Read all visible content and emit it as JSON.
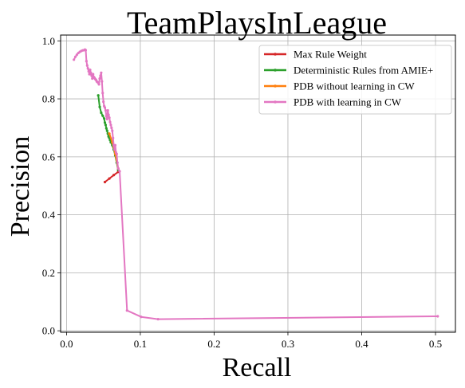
{
  "chart_data": {
    "type": "line",
    "title": "TeamPlaysInLeague",
    "xlabel": "Recall",
    "ylabel": "Precision",
    "xlim": [
      -0.008,
      0.527
    ],
    "ylim": [
      -0.005,
      1.02
    ],
    "xticks": [
      0.0,
      0.1,
      0.2,
      0.3,
      0.4,
      0.5
    ],
    "xtick_labels": [
      "0.0",
      "0.1",
      "0.2",
      "0.3",
      "0.4",
      "0.5"
    ],
    "yticks": [
      0.0,
      0.2,
      0.4,
      0.6,
      0.8,
      1.0
    ],
    "ytick_labels": [
      "0.0",
      "0.2",
      "0.4",
      "0.6",
      "0.8",
      "1.0"
    ],
    "grid": true,
    "legend": "top-right",
    "series": [
      {
        "name": "Max Rule Weight",
        "color": "#d62728",
        "x": [
          0.052,
          0.058,
          0.064,
          0.07
        ],
        "y": [
          0.513,
          0.525,
          0.537,
          0.548
        ]
      },
      {
        "name": "Deterministic Rules from AMIE+",
        "color": "#2ca02c",
        "x": [
          0.043,
          0.045,
          0.047,
          0.049,
          0.051,
          0.052,
          0.053,
          0.054,
          0.055,
          0.056,
          0.057,
          0.058,
          0.059,
          0.06,
          0.062,
          0.064,
          0.066,
          0.068,
          0.07
        ],
        "y": [
          0.812,
          0.772,
          0.752,
          0.742,
          0.732,
          0.718,
          0.71,
          0.698,
          0.69,
          0.68,
          0.67,
          0.665,
          0.658,
          0.65,
          0.64,
          0.625,
          0.605,
          0.58,
          0.555
        ]
      },
      {
        "name": "PDB without learning in CW",
        "color": "#ff7f0e",
        "x": [
          0.058,
          0.062,
          0.066,
          0.07
        ],
        "y": [
          0.68,
          0.65,
          0.61,
          0.56
        ]
      },
      {
        "name": "PDB with learning in CW",
        "color": "#e377c2",
        "x": [
          0.01,
          0.012,
          0.014,
          0.016,
          0.018,
          0.02,
          0.022,
          0.024,
          0.025,
          0.026,
          0.027,
          0.028,
          0.029,
          0.03,
          0.031,
          0.032,
          0.033,
          0.034,
          0.035,
          0.036,
          0.037,
          0.038,
          0.039,
          0.04,
          0.041,
          0.042,
          0.043,
          0.044,
          0.045,
          0.046,
          0.047,
          0.048,
          0.049,
          0.05,
          0.051,
          0.052,
          0.053,
          0.054,
          0.055,
          0.056,
          0.057,
          0.058,
          0.059,
          0.06,
          0.061,
          0.062,
          0.063,
          0.064,
          0.065,
          0.066,
          0.067,
          0.068,
          0.069,
          0.07,
          0.072,
          0.082,
          0.101,
          0.124,
          0.503
        ],
        "y": [
          0.935,
          0.945,
          0.952,
          0.958,
          0.962,
          0.965,
          0.967,
          0.968,
          0.97,
          0.968,
          0.93,
          0.915,
          0.905,
          0.895,
          0.885,
          0.9,
          0.89,
          0.88,
          0.87,
          0.885,
          0.875,
          0.872,
          0.868,
          0.865,
          0.86,
          0.858,
          0.855,
          0.85,
          0.87,
          0.88,
          0.89,
          0.86,
          0.82,
          0.79,
          0.775,
          0.77,
          0.76,
          0.74,
          0.73,
          0.76,
          0.745,
          0.735,
          0.72,
          0.71,
          0.7,
          0.69,
          0.665,
          0.64,
          0.625,
          0.64,
          0.615,
          0.61,
          0.58,
          0.56,
          0.55,
          0.07,
          0.048,
          0.04,
          0.05
        ]
      }
    ]
  }
}
